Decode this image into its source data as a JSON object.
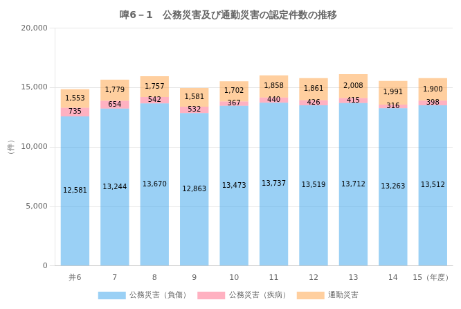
{
  "chart_data": {
    "type": "bar",
    "title": "嘷6－1　公務災害及び通勤災害の認定件数の推移",
    "ylabel": "（件）",
    "categories": [
      "并6",
      "7",
      "8",
      "9",
      "10",
      "11",
      "12",
      "13",
      "14",
      "15（年度）"
    ],
    "series": [
      {
        "name": "公務災害（負傷）",
        "values": [
          12581,
          13244,
          13670,
          12863,
          13473,
          13737,
          13519,
          13712,
          13263,
          13512
        ],
        "value_labels": [
          "12,581",
          "13,244",
          "13,670",
          "12,863",
          "13,473",
          "13,737",
          "13,519",
          "13,712",
          "13,263",
          "13,512"
        ]
      },
      {
        "name": "公務災害（疾病）",
        "values": [
          735,
          654,
          542,
          532,
          367,
          440,
          426,
          415,
          316,
          398
        ]
      },
      {
        "name": "通勤災害",
        "values": [
          1553,
          1779,
          1757,
          1581,
          1702,
          1858,
          1861,
          2008,
          1991,
          1900
        ],
        "value_labels": [
          "1,553",
          "1,779",
          "1,757",
          "1,581",
          "1,702",
          "1,858",
          "1,861",
          "2,008",
          "1,991",
          "1,900"
        ]
      }
    ],
    "stacked": true,
    "data_labels": true,
    "ylim": [
      0,
      20000
    ],
    "yticks": [
      0,
      {
        "value": 5000,
        "label": "5,000"
      },
      {
        "value": 10000,
        "label": "10,000"
      },
      {
        "value": 15000,
        "label": "15,000"
      },
      {
        "value": 20000,
        "label": "20,000"
      }
    ],
    "grid": true,
    "legend": "bottom"
  }
}
